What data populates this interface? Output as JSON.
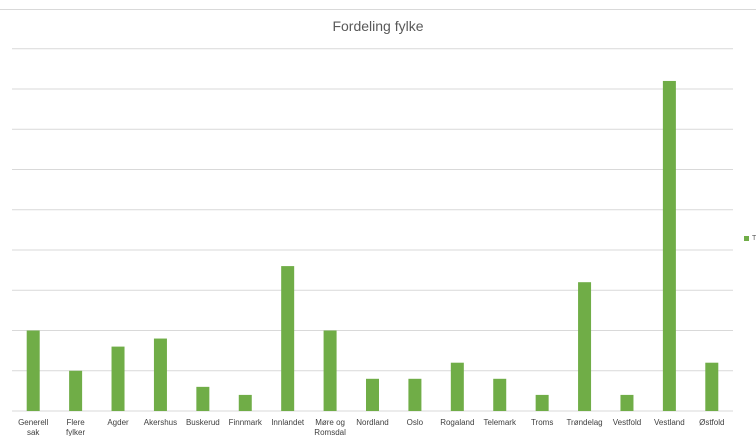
{
  "chart_data": {
    "type": "bar",
    "title": "Fordeling fylke",
    "xlabel": "",
    "ylabel": "",
    "categories": [
      "Generell sak",
      "Flere fylker",
      "Agder",
      "Akershus",
      "Buskerud",
      "Finnmark",
      "Innlandet",
      "Møre og Romsdal",
      "Nordland",
      "Oslo",
      "Rogaland",
      "Telemark",
      "Troms",
      "Trøndelag",
      "Vestfold",
      "Vestland",
      "Østfold"
    ],
    "series": [
      {
        "name": "T",
        "values": [
          10,
          5,
          8,
          9,
          3,
          2,
          18,
          10,
          4,
          4,
          6,
          4,
          2,
          16,
          2,
          41,
          6
        ]
      }
    ],
    "ylim": [
      0,
      45
    ],
    "grid": true,
    "legend": "right",
    "colors": {
      "bar": "#70ad47",
      "grid": "#d9d9d9"
    }
  }
}
